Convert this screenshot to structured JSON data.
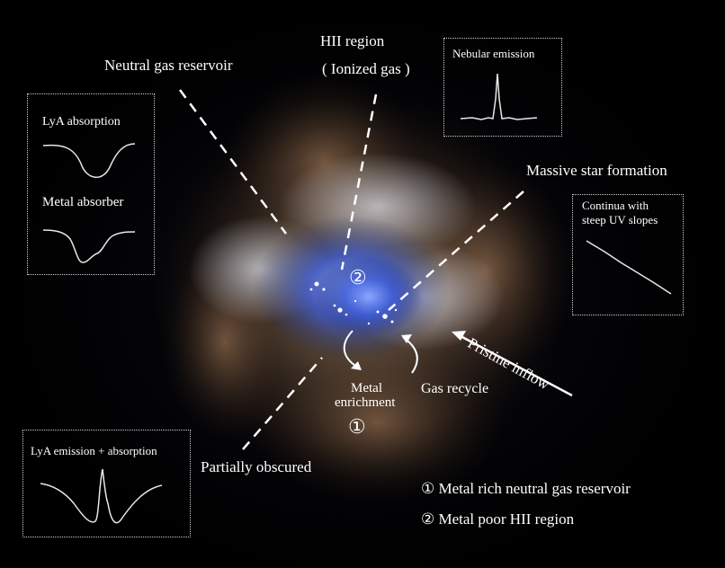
{
  "labels": {
    "hii_region": "HII region",
    "ionized_gas": "( Ionized gas )",
    "neutral_gas_reservoir": "Neutral gas reservoir",
    "massive_star_formation": "Massive star formation",
    "pristine_inflow": "Pristine inflow",
    "gas_recycle": "Gas recycle",
    "metal": "Metal",
    "enrichment": "enrichment",
    "partially_obscured": "Partially obscured",
    "marker_1": "①",
    "marker_2": "②"
  },
  "panels": {
    "nebular_emission": "Nebular emission",
    "lya_absorption": "LyA absorption",
    "metal_absorber": "Metal absorber",
    "continua_line1": "Continua with",
    "continua_line2": "steep UV slopes",
    "lya_emission_absorption": "LyA emission + absorption"
  },
  "legend": {
    "item1": "① Metal rich neutral gas reservoir",
    "item2": "② Metal poor HII region"
  },
  "colors": {
    "background": "#000000",
    "nebula_core": "#3a5ad8",
    "nebula_dust": "#b08a60",
    "line": "#ffffff"
  }
}
